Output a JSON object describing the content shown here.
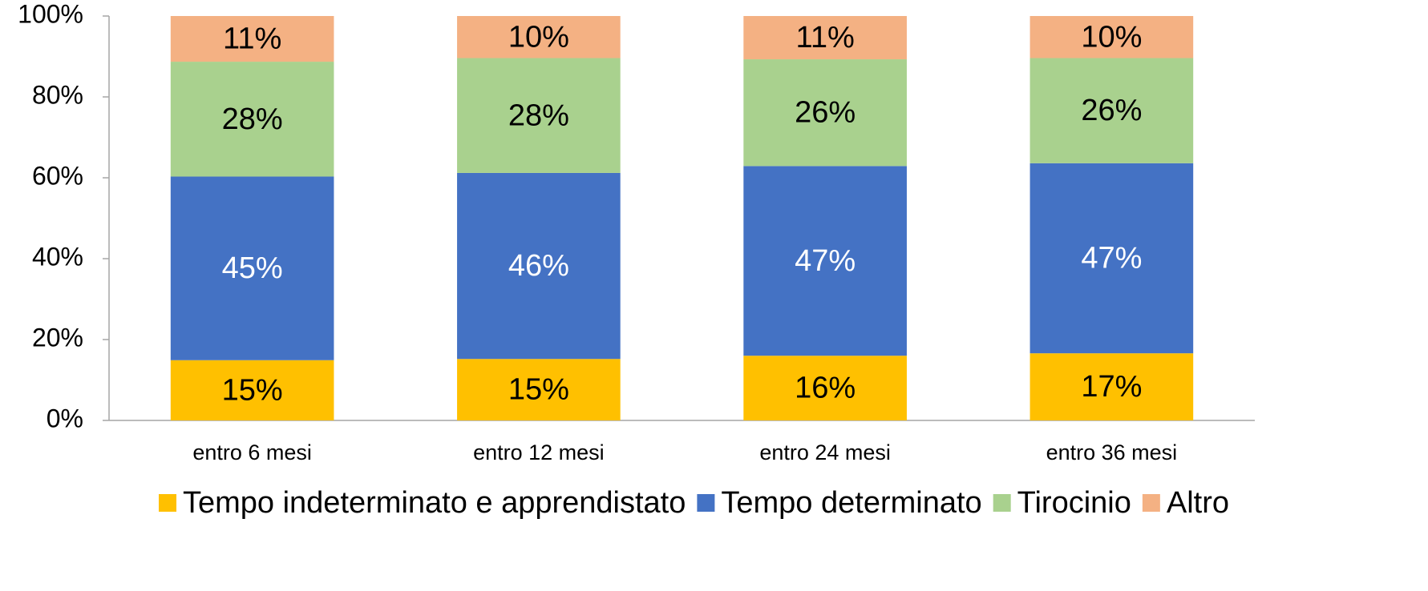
{
  "chart_data": {
    "type": "stacked_bar",
    "categories": [
      "entro 6 mesi",
      "entro 12 mesi",
      "entro 24 mesi",
      "entro 36 mesi"
    ],
    "series": [
      {
        "name": "Tempo indeterminato e apprendistato",
        "color": "#ffc000",
        "label_color": "#000000",
        "values": [
          14.9,
          15.2,
          16.0,
          16.6
        ],
        "value_labels": [
          "15%",
          "15%",
          "16%",
          "17%"
        ]
      },
      {
        "name": "Tempo determinato",
        "color": "#4472c4",
        "label_color": "#ffffff",
        "values": [
          45.4,
          46.0,
          46.9,
          47.0
        ],
        "value_labels": [
          "45%",
          "46%",
          "47%",
          "47%"
        ]
      },
      {
        "name": "Tirocinio",
        "color": "#a9d18e",
        "label_color": "#000000",
        "values": [
          28.4,
          28.4,
          26.4,
          26.0
        ],
        "value_labels": [
          "28%",
          "28%",
          "26%",
          "26%"
        ]
      },
      {
        "name": "Altro",
        "color": "#f4b183",
        "label_color": "#000000",
        "values": [
          11.3,
          10.4,
          10.7,
          10.4
        ],
        "value_labels": [
          "11%",
          "10%",
          "11%",
          "10%"
        ]
      }
    ],
    "ylim": [
      0,
      100
    ],
    "yticks": [
      {
        "value": 0,
        "label": "0%"
      },
      {
        "value": 20,
        "label": "20%"
      },
      {
        "value": 40,
        "label": "40%"
      },
      {
        "value": 60,
        "label": "60%"
      },
      {
        "value": 80,
        "label": "80%"
      },
      {
        "value": 100,
        "label": "100%"
      }
    ],
    "legend": "bottom"
  }
}
